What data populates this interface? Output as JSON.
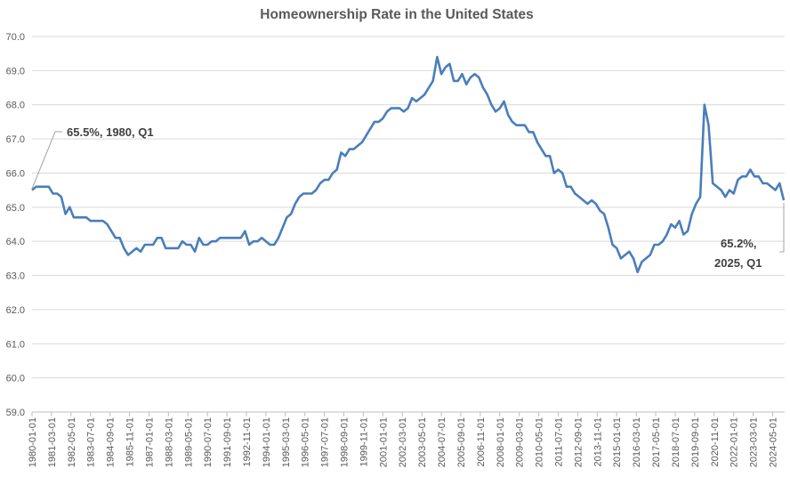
{
  "chart_data": {
    "type": "line",
    "title": "Homeownership Rate in the United States",
    "xlabel": "",
    "ylabel": "",
    "frequency": "quarterly",
    "x_start": "1980-01-01",
    "x_end": "2025-01-01",
    "ylim": [
      59.0,
      70.0
    ],
    "y_ticks": [
      "59.0",
      "60.0",
      "61.0",
      "62.0",
      "63.0",
      "64.0",
      "65.0",
      "66.0",
      "67.0",
      "68.0",
      "69.0",
      "70.0"
    ],
    "x_ticks": [
      "1980-01-01",
      "1981-03-01",
      "1982-05-01",
      "1983-07-01",
      "1984-09-01",
      "1985-11-01",
      "1987-01-01",
      "1988-03-01",
      "1989-05-01",
      "1990-07-01",
      "1991-09-01",
      "1992-11-01",
      "1994-01-01",
      "1995-03-01",
      "1996-05-01",
      "1997-07-01",
      "1998-09-01",
      "1999-11-01",
      "2001-01-01",
      "2002-03-01",
      "2003-05-01",
      "2004-07-01",
      "2005-09-01",
      "2006-11-01",
      "2008-01-01",
      "2009-03-01",
      "2010-05-01",
      "2011-07-01",
      "2012-09-01",
      "2013-11-01",
      "2015-01-01",
      "2016-03-01",
      "2017-05-01",
      "2018-07-01",
      "2019-09-01",
      "2020-11-01",
      "2022-01-01",
      "2023-03-01",
      "2024-05-01"
    ],
    "grid": true,
    "legend": "none",
    "series": [
      {
        "name": "Homeownership Rate",
        "color": "#4a7ebb",
        "values": [
          65.5,
          65.6,
          65.6,
          65.6,
          65.6,
          65.4,
          65.4,
          65.3,
          64.8,
          65.0,
          64.7,
          64.7,
          64.7,
          64.7,
          64.6,
          64.6,
          64.6,
          64.6,
          64.5,
          64.3,
          64.1,
          64.1,
          63.8,
          63.6,
          63.7,
          63.8,
          63.7,
          63.9,
          63.9,
          63.9,
          64.1,
          64.1,
          63.8,
          63.8,
          63.8,
          63.8,
          64.0,
          63.9,
          63.9,
          63.7,
          64.1,
          63.9,
          63.9,
          64.0,
          64.0,
          64.1,
          64.1,
          64.1,
          64.1,
          64.1,
          64.1,
          64.3,
          63.9,
          64.0,
          64.0,
          64.1,
          64.0,
          63.9,
          63.9,
          64.1,
          64.4,
          64.7,
          64.8,
          65.1,
          65.3,
          65.4,
          65.4,
          65.4,
          65.5,
          65.7,
          65.8,
          65.8,
          66.0,
          66.1,
          66.6,
          66.5,
          66.7,
          66.7,
          66.8,
          66.9,
          67.1,
          67.3,
          67.5,
          67.5,
          67.6,
          67.8,
          67.9,
          67.9,
          67.9,
          67.8,
          67.9,
          68.2,
          68.1,
          68.2,
          68.3,
          68.5,
          68.7,
          69.4,
          68.9,
          69.1,
          69.2,
          68.7,
          68.7,
          68.9,
          68.6,
          68.8,
          68.9,
          68.8,
          68.5,
          68.3,
          68.0,
          67.8,
          67.9,
          68.1,
          67.7,
          67.5,
          67.4,
          67.4,
          67.4,
          67.2,
          67.2,
          66.9,
          66.7,
          66.5,
          66.5,
          66.0,
          66.1,
          66.0,
          65.6,
          65.6,
          65.4,
          65.3,
          65.2,
          65.1,
          65.2,
          65.1,
          64.9,
          64.8,
          64.4,
          63.9,
          63.8,
          63.5,
          63.6,
          63.7,
          63.5,
          63.1,
          63.4,
          63.5,
          63.6,
          63.9,
          63.9,
          64.0,
          64.2,
          64.5,
          64.4,
          64.6,
          64.2,
          64.3,
          64.8,
          65.1,
          65.3,
          68.0,
          67.4,
          65.7,
          65.6,
          65.5,
          65.3,
          65.5,
          65.4,
          65.8,
          65.9,
          65.9,
          66.1,
          65.9,
          65.9,
          65.7,
          65.7,
          65.6,
          65.5,
          65.7,
          65.2
        ]
      }
    ],
    "annotations": {
      "start": "65.5%, 1980, Q1",
      "end_line1": "65.2%,",
      "end_line2": "2025, Q1"
    }
  }
}
